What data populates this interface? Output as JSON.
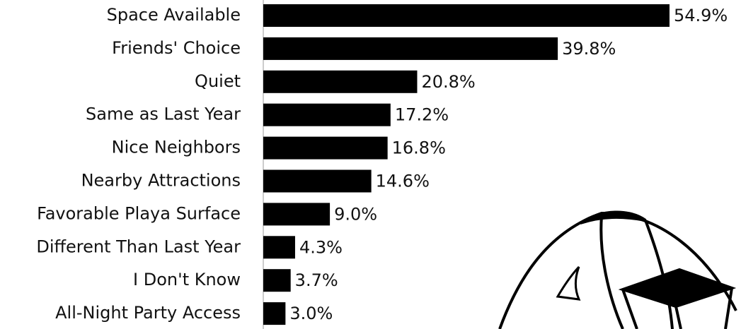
{
  "chart_data": {
    "type": "bar",
    "orientation": "horizontal",
    "color": "#000000",
    "categories": [
      "Space Available",
      "Friends' Choice",
      "Quiet",
      "Same as Last Year",
      "Nice Neighbors",
      "Nearby Attractions",
      "Favorable Playa Surface",
      "Different Than Last Year",
      "I Don't Know",
      "All-Night Party Access"
    ],
    "values": [
      54.9,
      39.8,
      20.8,
      17.2,
      16.8,
      14.6,
      9.0,
      4.3,
      3.7,
      3.0
    ],
    "value_labels": [
      "54.9%",
      "39.8%",
      "20.8%",
      "17.2%",
      "16.8%",
      "14.6%",
      "9.0%",
      "4.3%",
      "3.7%",
      "3.0%"
    ]
  }
}
